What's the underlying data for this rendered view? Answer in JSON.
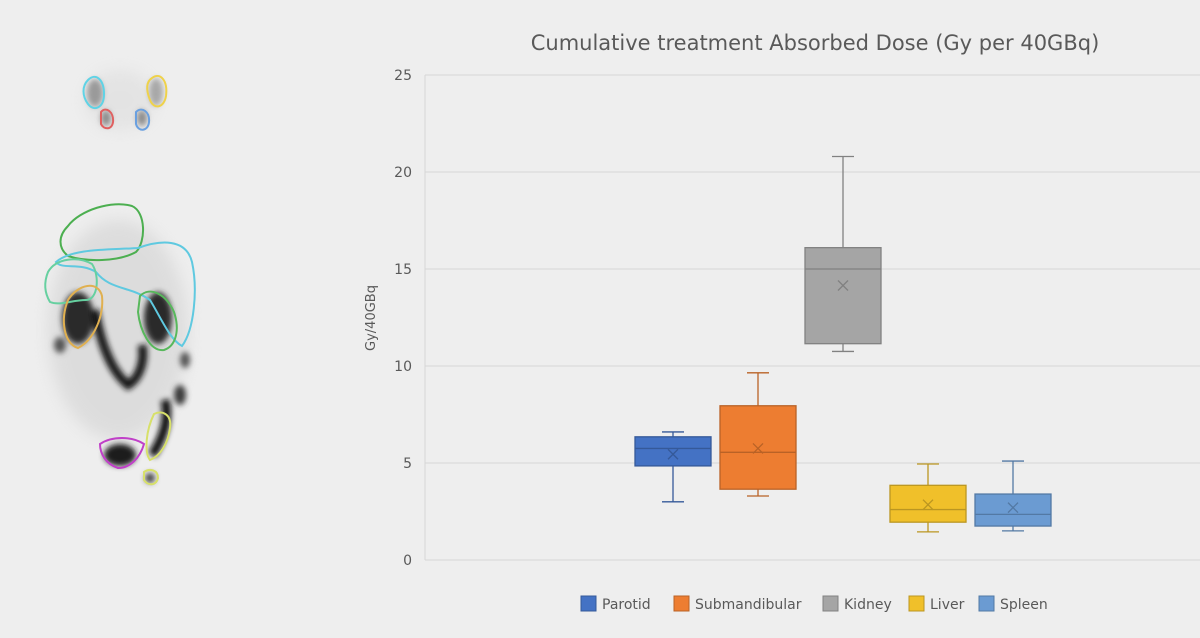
{
  "chart_data": {
    "type": "box",
    "title": "Cumulative treatment Absorbed Dose (Gy per 40GBq)",
    "ylabel": "Gy/40GBq",
    "xlabel": "",
    "ylim": [
      0,
      25
    ],
    "yticks": [
      0,
      5,
      10,
      15,
      20,
      25
    ],
    "grid": true,
    "legend_position": "bottom",
    "series": [
      {
        "name": "Parotid",
        "color": "#4472c4",
        "min": 3.0,
        "q1": 4.85,
        "median": 5.75,
        "q3": 6.35,
        "max": 6.6,
        "mean": 5.45
      },
      {
        "name": "Submandibular",
        "color": "#ed7d31",
        "min": 3.3,
        "q1": 3.65,
        "median": 5.55,
        "q3": 7.95,
        "max": 9.65,
        "mean": 5.75
      },
      {
        "name": "Kidney",
        "color": "#a5a5a5",
        "min": 10.75,
        "q1": 11.15,
        "median": 15.0,
        "q3": 16.1,
        "max": 20.8,
        "mean": 14.15
      },
      {
        "name": "Liver",
        "color": "#f0c02a",
        "min": 1.45,
        "q1": 1.95,
        "median": 2.6,
        "q3": 3.85,
        "max": 4.95,
        "mean": 2.85
      },
      {
        "name": "Spleen",
        "color": "#6b9bd2",
        "min": 1.5,
        "q1": 1.75,
        "median": 2.35,
        "q3": 3.4,
        "max": 5.1,
        "mean": 2.7
      }
    ]
  }
}
